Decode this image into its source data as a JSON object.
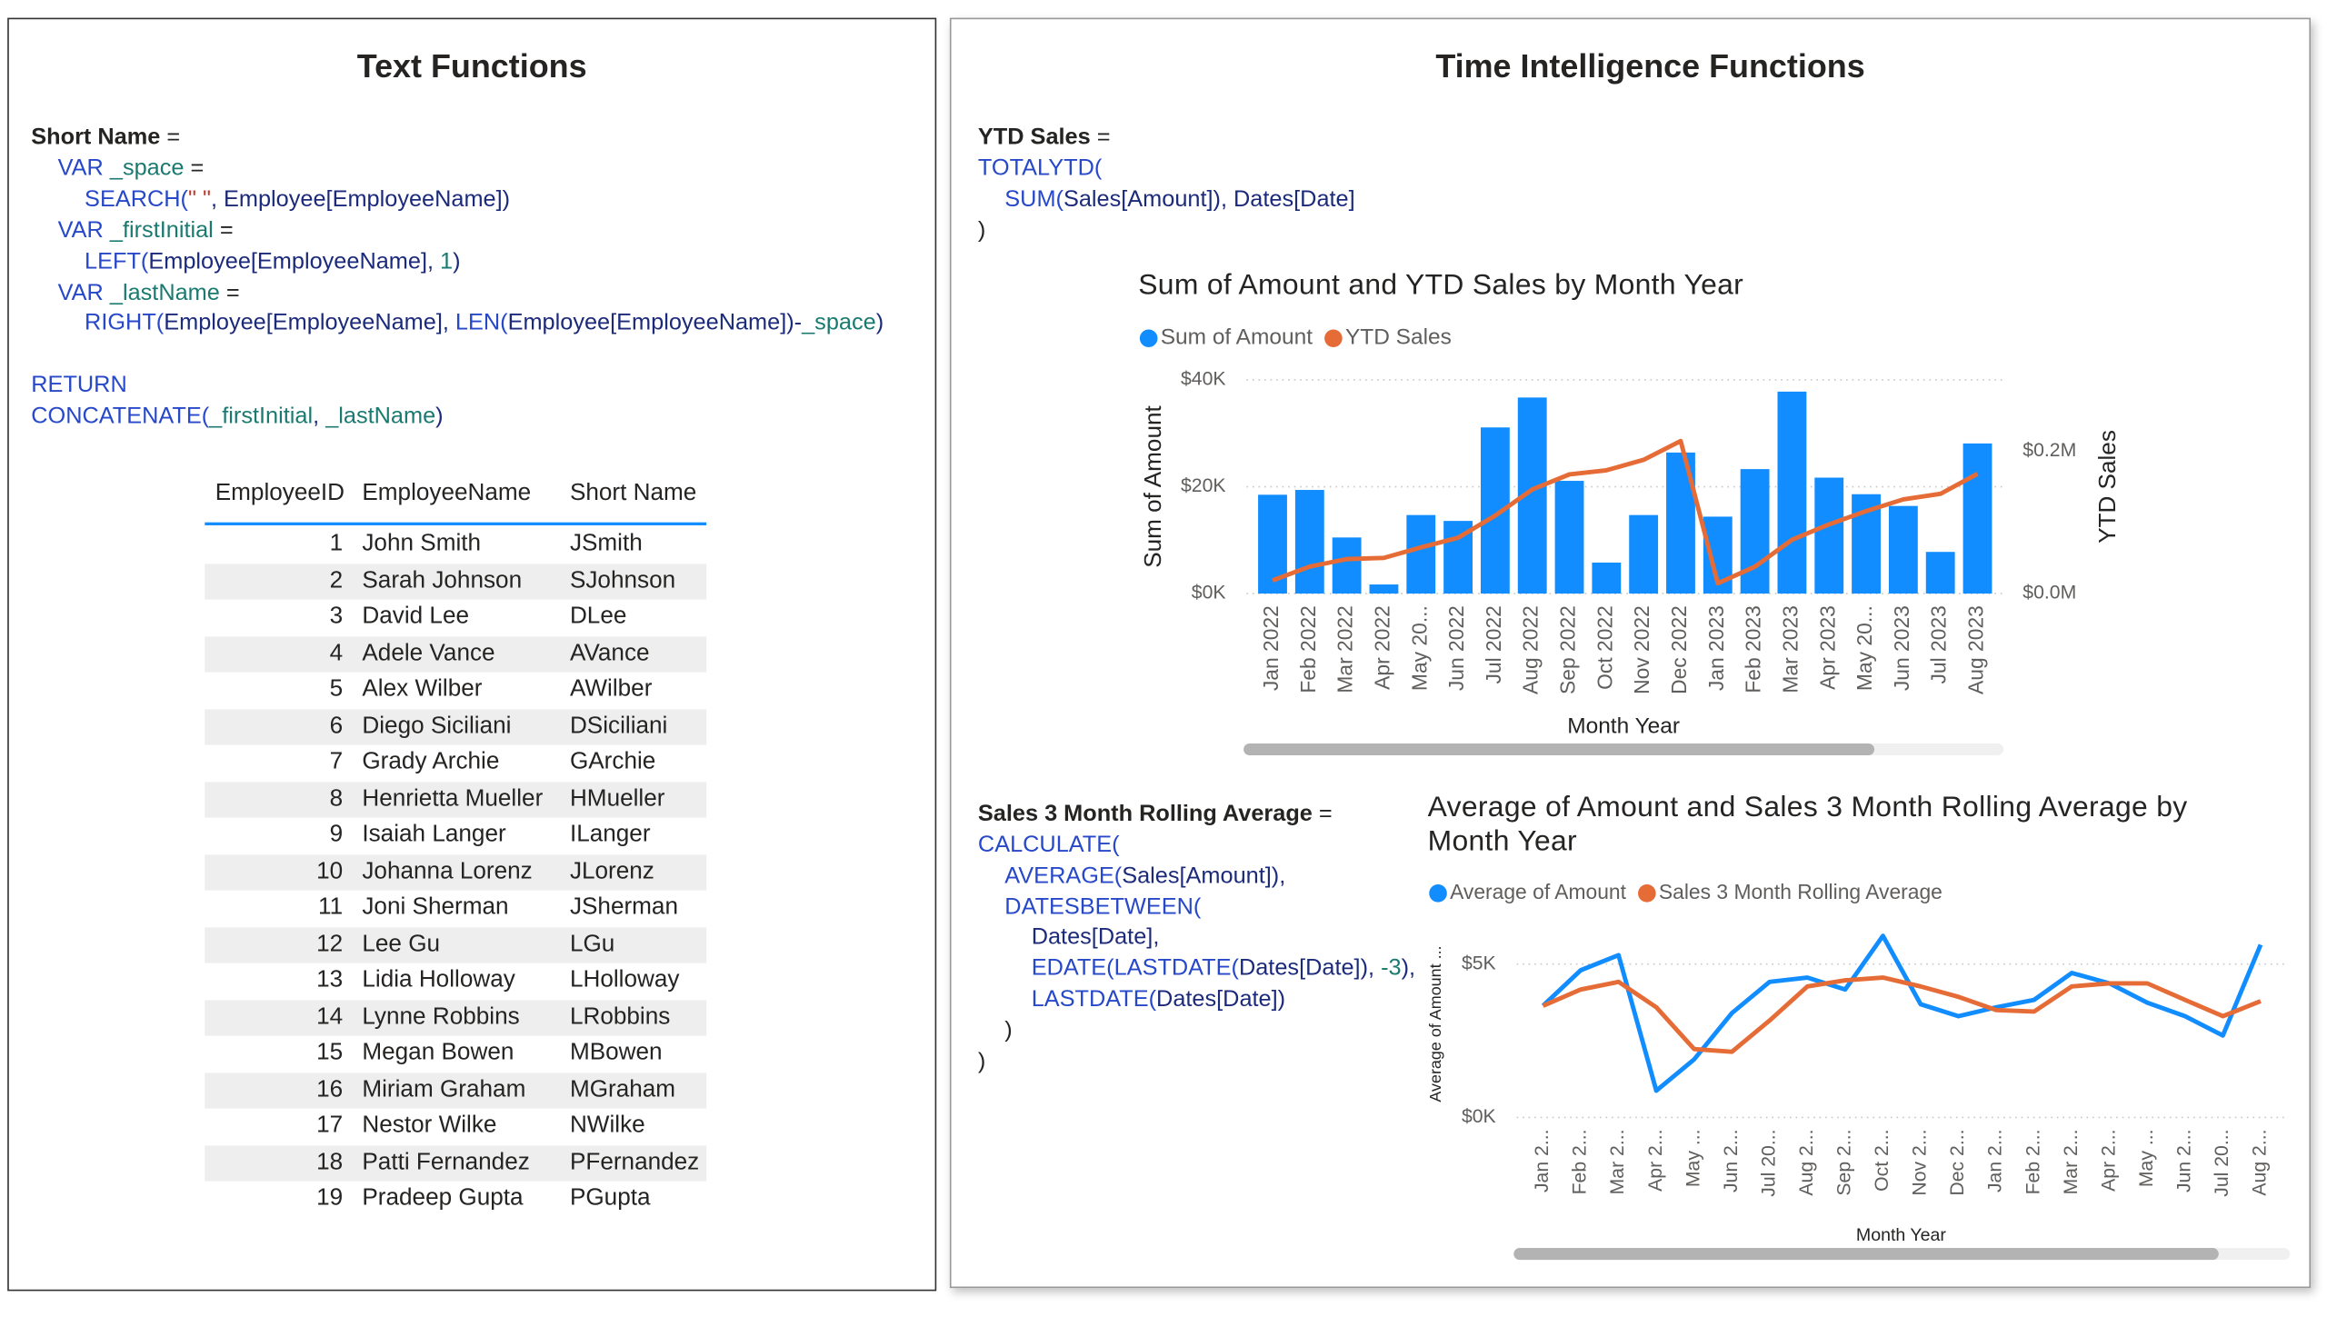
{
  "text_panel": {
    "title": "Text Functions",
    "code": [
      [
        {
          "text": "Short Name",
          "color": "#252423",
          "bold": true
        },
        {
          "text": " =",
          "color": "#252423"
        }
      ],
      [
        {
          "text": "VAR",
          "color": "#2648c9"
        },
        {
          "text": " _space",
          "color": "#1a7a70"
        },
        {
          "text": " =",
          "color": "#252423"
        }
      ],
      [
        {
          "text": "SEARCH(",
          "color": "#2648c9"
        },
        {
          "text": "\" \"",
          "color": "#c0392b"
        },
        {
          "text": ", Employee[EmployeeName])",
          "color": "#1b2a7a"
        }
      ],
      [
        {
          "text": "VAR",
          "color": "#2648c9"
        },
        {
          "text": " _firstInitial",
          "color": "#1a7a70"
        },
        {
          "text": " =",
          "color": "#252423"
        }
      ],
      [
        {
          "text": "LEFT(",
          "color": "#2648c9"
        },
        {
          "text": "Employee[EmployeeName], ",
          "color": "#1b2a7a"
        },
        {
          "text": "1",
          "color": "#1a7a70"
        },
        {
          "text": ")",
          "color": "#1b2a7a"
        }
      ],
      [
        {
          "text": "VAR",
          "color": "#2648c9"
        },
        {
          "text": " _lastName",
          "color": "#1a7a70"
        },
        {
          "text": " =",
          "color": "#252423"
        }
      ],
      [
        {
          "text": "RIGHT(",
          "color": "#2648c9"
        },
        {
          "text": "Employee[EmployeeName], ",
          "color": "#1b2a7a"
        },
        {
          "text": "LEN(",
          "color": "#2648c9"
        },
        {
          "text": "Employee[EmployeeName])-",
          "color": "#1b2a7a"
        },
        {
          "text": "_space",
          "color": "#1a7a70"
        },
        {
          "text": ")",
          "color": "#1b2a7a"
        }
      ],
      [
        {
          "text": "RETURN",
          "color": "#2648c9"
        }
      ],
      [
        {
          "text": "CONCATENATE(",
          "color": "#2648c9"
        },
        {
          "text": "_firstInitial",
          "color": "#1a7a70"
        },
        {
          "text": ", ",
          "color": "#1b2a7a"
        },
        {
          "text": "_lastName",
          "color": "#1a7a70"
        },
        {
          "text": ")",
          "color": "#1b2a7a"
        }
      ]
    ],
    "table": {
      "columns": [
        "EmployeeID",
        "EmployeeName",
        "Short Name"
      ],
      "rows": [
        [
          1,
          "John Smith",
          "JSmith"
        ],
        [
          2,
          "Sarah Johnson",
          "SJohnson"
        ],
        [
          3,
          "David Lee",
          "DLee"
        ],
        [
          4,
          "Adele Vance",
          "AVance"
        ],
        [
          5,
          "Alex Wilber",
          "AWilber"
        ],
        [
          6,
          "Diego Siciliani",
          "DSiciliani"
        ],
        [
          7,
          "Grady Archie",
          "GArchie"
        ],
        [
          8,
          "Henrietta Mueller",
          "HMueller"
        ],
        [
          9,
          "Isaiah Langer",
          "ILanger"
        ],
        [
          10,
          "Johanna Lorenz",
          "JLorenz"
        ],
        [
          11,
          "Joni Sherman",
          "JSherman"
        ],
        [
          12,
          "Lee Gu",
          "LGu"
        ],
        [
          13,
          "Lidia Holloway",
          "LHolloway"
        ],
        [
          14,
          "Lynne Robbins",
          "LRobbins"
        ],
        [
          15,
          "Megan Bowen",
          "MBowen"
        ],
        [
          16,
          "Miriam Graham",
          "MGraham"
        ],
        [
          17,
          "Nestor Wilke",
          "NWilke"
        ],
        [
          18,
          "Patti Fernandez",
          "PFernandez"
        ],
        [
          19,
          "Pradeep Gupta",
          "PGupta"
        ]
      ]
    }
  },
  "time_panel": {
    "title": "Time Intelligence Functions",
    "ytd_code": [
      [
        {
          "text": "YTD Sales",
          "color": "#252423",
          "bold": true
        },
        {
          "text": " =",
          "color": "#252423"
        }
      ],
      [
        {
          "text": "TOTALYTD(",
          "color": "#2648c9"
        }
      ],
      [
        {
          "text": "SUM(",
          "color": "#2648c9"
        },
        {
          "text": "Sales[Amount]), Dates[Date]",
          "color": "#1b2a7a"
        }
      ],
      [
        {
          "text": ")",
          "color": "#252423"
        }
      ]
    ],
    "rolling_code": [
      [
        {
          "text": "Sales 3 Month Rolling Average",
          "color": "#252423",
          "bold": true
        },
        {
          "text": " =",
          "color": "#252423"
        }
      ],
      [
        {
          "text": "CALCULATE(",
          "color": "#2648c9"
        }
      ],
      [
        {
          "text": "AVERAGE(",
          "color": "#2648c9"
        },
        {
          "text": "Sales[Amount]),",
          "color": "#1b2a7a"
        }
      ],
      [
        {
          "text": "DATESBETWEEN(",
          "color": "#2648c9"
        }
      ],
      [
        {
          "text": "Dates[Date],",
          "color": "#1b2a7a"
        }
      ],
      [
        {
          "text": "EDATE(LASTDATE(",
          "color": "#2648c9"
        },
        {
          "text": "Dates[Date]), ",
          "color": "#1b2a7a"
        },
        {
          "text": "-3",
          "color": "#1a7a70"
        },
        {
          "text": "),",
          "color": "#1b2a7a"
        }
      ],
      [
        {
          "text": "LASTDATE(",
          "color": "#2648c9"
        },
        {
          "text": "Dates[Date])",
          "color": "#1b2a7a"
        }
      ],
      [
        {
          "text": ")",
          "color": "#252423"
        }
      ],
      [
        {
          "text": ")",
          "color": "#252423"
        }
      ]
    ]
  },
  "chart_data": [
    {
      "type": "combo",
      "title": "Sum of Amount and YTD Sales by Month Year",
      "categories": [
        "Jan 2022",
        "Feb 2022",
        "Mar 2022",
        "Apr 2022",
        "May 20...",
        "Jun 2022",
        "Jul 2022",
        "Aug 2022",
        "Sep 2022",
        "Oct 2022",
        "Nov 2022",
        "Dec 2022",
        "Jan 2023",
        "Feb 2023",
        "Mar 2023",
        "Apr 2023",
        "May 20...",
        "Jun 2023",
        "Jul 2023",
        "Aug 2023"
      ],
      "series": [
        {
          "name": "Sum of Amount",
          "type": "bar",
          "color": "#118dff",
          "values": [
            18500,
            19400,
            10500,
            1700,
            14700,
            13600,
            31100,
            36700,
            21100,
            5800,
            14700,
            26400,
            14400,
            23300,
            37800,
            21700,
            18600,
            16400,
            7800,
            28100
          ]
        },
        {
          "name": "YTD Sales",
          "type": "line",
          "axis": "y2",
          "color": "#e66c37",
          "values": [
            18500,
            37900,
            48400,
            50100,
            64800,
            78400,
            109500,
            146200,
            167300,
            173100,
            187800,
            214200,
            14400,
            37700,
            75500,
            97200,
            115800,
            132200,
            140000,
            168100
          ]
        }
      ],
      "ylim": [
        0,
        40000
      ],
      "yticks": [
        {
          "value": 0,
          "label": "$0K"
        },
        {
          "value": 20000,
          "label": "$20K"
        },
        {
          "value": 40000,
          "label": "$40K"
        }
      ],
      "y2lim": [
        0,
        300000
      ],
      "y2ticks": [
        {
          "value": 0,
          "label": "$0.0M"
        },
        {
          "value": 200000,
          "label": "$0.2M"
        }
      ],
      "ylabel": "Sum of Amount",
      "y2label": "YTD Sales",
      "xlabel": "Month Year",
      "grid": true
    },
    {
      "type": "line",
      "title": "Average of Amount and Sales 3 Month Rolling Average by Month Year",
      "categories": [
        "Jan 2...",
        "Feb 2...",
        "Mar 2...",
        "Apr 2...",
        "May ...",
        "Jun 2...",
        "Jul 20...",
        "Aug 2...",
        "Sep 2...",
        "Oct 2...",
        "Nov 2...",
        "Dec 2...",
        "Jan 2...",
        "Feb 2...",
        "Mar 2...",
        "Apr 2...",
        "May ...",
        "Jun 2...",
        "Jul 20...",
        "Aug 2..."
      ],
      "series": [
        {
          "name": "Average of Amount",
          "type": "line",
          "color": "#118dff",
          "values": [
            3640,
            4800,
            5290,
            870,
            1890,
            3400,
            4420,
            4560,
            4170,
            5920,
            3690,
            3300,
            3590,
            3830,
            4710,
            4370,
            3740,
            3300,
            2670,
            5630
          ]
        },
        {
          "name": "Sales 3 Month Rolling Average",
          "type": "line",
          "color": "#e66c37",
          "values": [
            3640,
            4170,
            4420,
            3590,
            2230,
            2140,
            3160,
            4270,
            4470,
            4560,
            4270,
            3930,
            3500,
            3450,
            4270,
            4370,
            4370,
            3830,
            3300,
            3790
          ]
        }
      ],
      "ylim": [
        0,
        6000
      ],
      "yticks": [
        {
          "value": 0,
          "label": "$0K"
        },
        {
          "value": 5000,
          "label": "$5K"
        }
      ],
      "ylabel": "Average of Amount ...",
      "xlabel": "Month Year",
      "grid": true
    }
  ]
}
